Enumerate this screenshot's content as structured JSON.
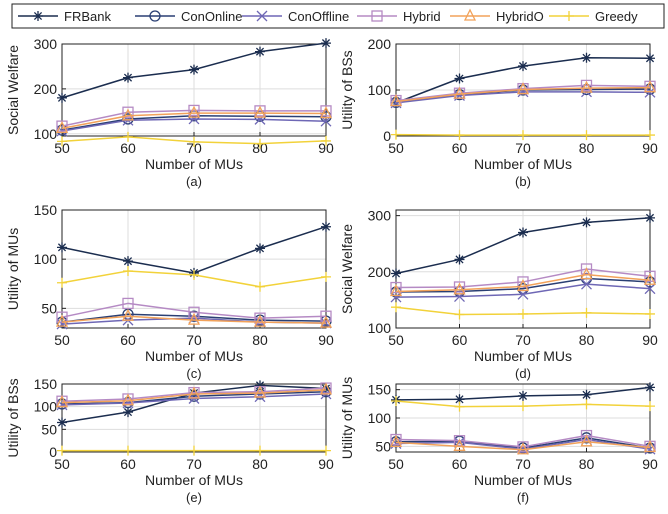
{
  "figure": {
    "legend": [
      {
        "name": "FRBank",
        "color": "#1b2d4f",
        "marker": "asterisk"
      },
      {
        "name": "ConOnline",
        "color": "#2a3f73",
        "marker": "circle"
      },
      {
        "name": "ConOffline",
        "color": "#6e67b5",
        "marker": "cross"
      },
      {
        "name": "Hybrid",
        "color": "#b58ac4",
        "marker": "square"
      },
      {
        "name": "HybridO",
        "color": "#f2a25a",
        "marker": "triangle"
      },
      {
        "name": "Greedy",
        "color": "#f2d23a",
        "marker": "plus"
      }
    ]
  },
  "chart_data": [
    {
      "panel": "(a)",
      "type": "line",
      "xlabel": "Number of MUs",
      "ylabel": "Social Welfare",
      "x": [
        50,
        60,
        70,
        80,
        90
      ],
      "xticks": [
        50,
        60,
        70,
        80,
        90
      ],
      "ylim": [
        95,
        300
      ],
      "yticks": [
        100,
        200,
        300
      ],
      "grid": true,
      "series": [
        {
          "name": "FRBank",
          "values": [
            180,
            225,
            243,
            283,
            302
          ]
        },
        {
          "name": "ConOnline",
          "values": [
            108,
            133,
            140,
            139,
            138
          ]
        },
        {
          "name": "ConOffline",
          "values": [
            106,
            130,
            133,
            132,
            128
          ]
        },
        {
          "name": "Hybrid",
          "values": [
            117,
            148,
            152,
            151,
            151
          ]
        },
        {
          "name": "HybridO",
          "values": [
            112,
            140,
            146,
            146,
            145
          ]
        },
        {
          "name": "Greedy",
          "values": [
            83,
            93,
            82,
            78,
            84
          ]
        }
      ]
    },
    {
      "panel": "(b)",
      "type": "line",
      "xlabel": "Number of MUs",
      "ylabel": "Utility of BSs",
      "x": [
        50,
        60,
        70,
        80,
        90
      ],
      "xticks": [
        50,
        60,
        70,
        80,
        90
      ],
      "ylim": [
        0,
        200
      ],
      "yticks": [
        0,
        100,
        200
      ],
      "grid": true,
      "series": [
        {
          "name": "FRBank",
          "values": [
            72,
            125,
            152,
            170,
            169
          ]
        },
        {
          "name": "ConOnline",
          "values": [
            73,
            90,
            100,
            101,
            102
          ]
        },
        {
          "name": "ConOffline",
          "values": [
            72,
            88,
            96,
            96,
            95
          ]
        },
        {
          "name": "Hybrid",
          "values": [
            77,
            93,
            103,
            110,
            108
          ]
        },
        {
          "name": "HybridO",
          "values": [
            75,
            91,
            101,
            104,
            105
          ]
        },
        {
          "name": "Greedy",
          "values": [
            3,
            2,
            2,
            2,
            2
          ]
        }
      ]
    },
    {
      "panel": "(c)",
      "type": "line",
      "xlabel": "Number of MUs",
      "ylabel": "Utility of MUs",
      "x": [
        50,
        60,
        70,
        80,
        90
      ],
      "xticks": [
        50,
        60,
        70,
        80,
        90
      ],
      "ylim": [
        30,
        150
      ],
      "yticks": [
        50,
        100,
        150
      ],
      "grid": true,
      "series": [
        {
          "name": "FRBank",
          "values": [
            112,
            98,
            86,
            111,
            133
          ]
        },
        {
          "name": "ConOnline",
          "values": [
            36,
            44,
            42,
            38,
            37
          ]
        },
        {
          "name": "ConOffline",
          "values": [
            34,
            38,
            40,
            36,
            35
          ]
        },
        {
          "name": "Hybrid",
          "values": [
            41,
            55,
            46,
            40,
            42
          ]
        },
        {
          "name": "HybridO",
          "values": [
            36,
            42,
            38,
            36,
            35
          ]
        },
        {
          "name": "Greedy",
          "values": [
            76,
            88,
            84,
            72,
            82
          ]
        }
      ]
    },
    {
      "panel": "(d)",
      "type": "line",
      "xlabel": "Number of MUs",
      "ylabel": "Social Welfare",
      "x": [
        50,
        60,
        70,
        80,
        90
      ],
      "xticks": [
        50,
        60,
        70,
        80,
        90
      ],
      "ylim": [
        100,
        310
      ],
      "yticks": [
        100,
        200,
        300
      ],
      "grid": true,
      "series": [
        {
          "name": "FRBank",
          "values": [
            197,
            222,
            270,
            288,
            296
          ]
        },
        {
          "name": "ConOnline",
          "values": [
            164,
            165,
            170,
            188,
            182
          ]
        },
        {
          "name": "ConOffline",
          "values": [
            155,
            156,
            160,
            178,
            170
          ]
        },
        {
          "name": "Hybrid",
          "values": [
            172,
            173,
            182,
            205,
            192
          ]
        },
        {
          "name": "HybridO",
          "values": [
            165,
            168,
            174,
            195,
            185
          ]
        },
        {
          "name": "Greedy",
          "values": [
            137,
            124,
            125,
            127,
            125
          ]
        }
      ]
    },
    {
      "panel": "(e)",
      "type": "line",
      "xlabel": "Number of MUs",
      "ylabel": "Utility of BSs",
      "x": [
        50,
        60,
        70,
        80,
        90
      ],
      "xticks": [
        50,
        60,
        70,
        80,
        90
      ],
      "ylim": [
        0,
        150
      ],
      "yticks": [
        0,
        50,
        100,
        150
      ],
      "grid": true,
      "series": [
        {
          "name": "FRBank",
          "values": [
            65,
            88,
            130,
            147,
            140
          ]
        },
        {
          "name": "ConOnline",
          "values": [
            106,
            109,
            123,
            128,
            133
          ]
        },
        {
          "name": "ConOffline",
          "values": [
            104,
            108,
            118,
            122,
            128
          ]
        },
        {
          "name": "Hybrid",
          "values": [
            112,
            117,
            131,
            133,
            141
          ]
        },
        {
          "name": "HybridO",
          "values": [
            109,
            113,
            128,
            130,
            137
          ]
        },
        {
          "name": "Greedy",
          "values": [
            3,
            3,
            3,
            3,
            3
          ]
        }
      ]
    },
    {
      "panel": "(f)",
      "type": "line",
      "xlabel": "Number of MUs",
      "ylabel": "Utility of MUs",
      "x": [
        50,
        60,
        70,
        80,
        90
      ],
      "xticks": [
        50,
        60,
        70,
        80,
        90
      ],
      "ylim": [
        40,
        160
      ],
      "yticks": [
        50,
        100,
        150
      ],
      "grid": true,
      "series": [
        {
          "name": "FRBank",
          "values": [
            132,
            133,
            139,
            141,
            154
          ]
        },
        {
          "name": "ConOnline",
          "values": [
            58,
            59,
            47,
            65,
            47
          ]
        },
        {
          "name": "ConOffline",
          "values": [
            55,
            57,
            45,
            62,
            45
          ]
        },
        {
          "name": "Hybrid",
          "values": [
            62,
            60,
            49,
            69,
            50
          ]
        },
        {
          "name": "HybridO",
          "values": [
            57,
            50,
            44,
            58,
            48
          ]
        },
        {
          "name": "Greedy",
          "values": [
            130,
            120,
            121,
            124,
            121
          ]
        }
      ]
    }
  ]
}
